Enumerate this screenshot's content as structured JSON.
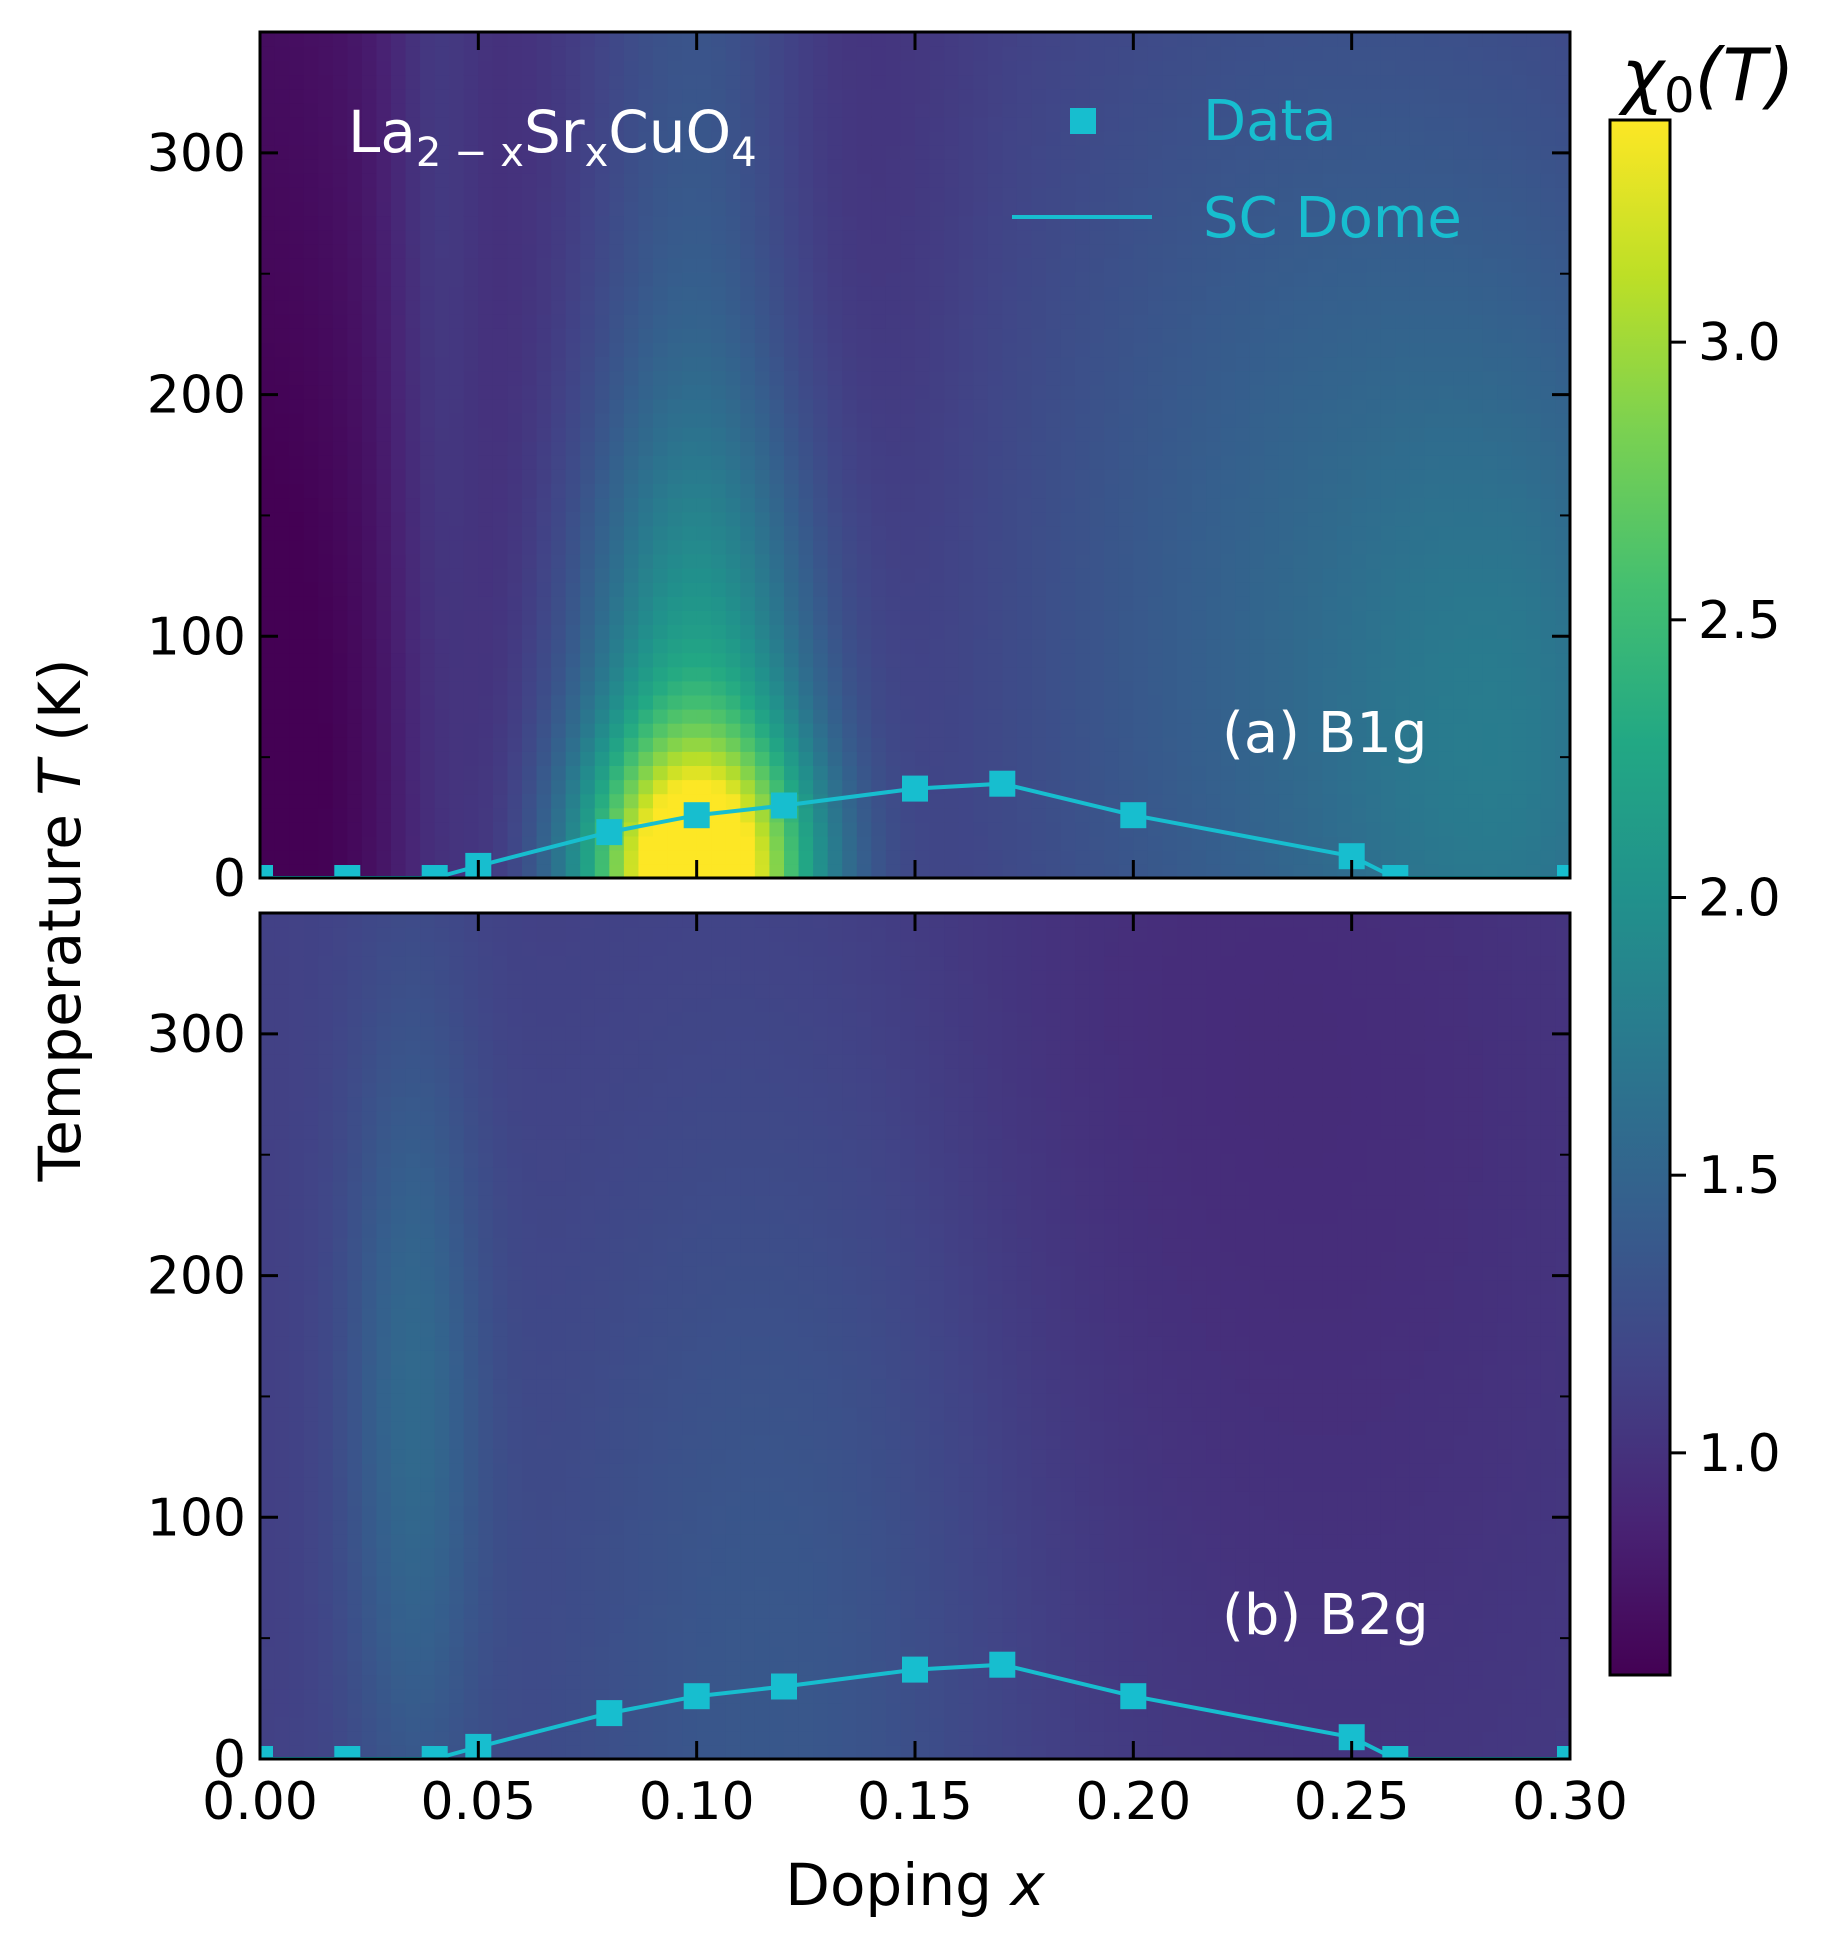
{
  "chart_data": {
    "type": "heatmap",
    "material": {
      "base": "La",
      "sub1": "2 − x",
      "mid": "Sr",
      "sub2": "x",
      "rest": "CuO",
      "sub3": "4"
    },
    "xlabel": "Doping x",
    "ylabel": "Temperature T (K)",
    "xlim": [
      0.0,
      0.3
    ],
    "ylim": [
      0,
      350
    ],
    "x_ticks": [
      "0.00",
      "0.05",
      "0.10",
      "0.15",
      "0.20",
      "0.25",
      "0.30"
    ],
    "y_ticks": [
      "0",
      "100",
      "200",
      "300"
    ],
    "colorbar": {
      "title": "χ0(T)",
      "colormap": "viridis",
      "range": [
        0.6,
        3.4
      ],
      "ticks": [
        "1.0",
        "1.5",
        "2.0",
        "2.5",
        "3.0"
      ]
    },
    "legend": {
      "position": "top-right",
      "color": "#17becf",
      "entries": [
        {
          "label": "Data",
          "marker": "square"
        },
        {
          "label": "SC Dome",
          "marker": "line"
        }
      ]
    },
    "sc_dome": {
      "x": [
        0.0,
        0.02,
        0.04,
        0.05,
        0.08,
        0.1,
        0.12,
        0.15,
        0.17,
        0.2,
        0.25,
        0.26,
        0.3
      ],
      "y": [
        0,
        0,
        0,
        5,
        19,
        26,
        30,
        37,
        39,
        26,
        9,
        0,
        0
      ]
    },
    "panels": [
      {
        "label": "(a) B1g",
        "background_value": 1.05,
        "features": [
          {
            "x": 0.0,
            "y": 250,
            "sx": 0.035,
            "sy": 400,
            "amp": -0.35
          },
          {
            "x": 0.0,
            "y": 0,
            "sx": 0.03,
            "sy": 150,
            "amp": -0.2
          },
          {
            "x": 0.04,
            "y": 250,
            "sx": 0.008,
            "sy": 300,
            "amp": 0.2
          },
          {
            "x": 0.1,
            "y": 0,
            "sx": 0.018,
            "sy": 40,
            "amp": 2.1
          },
          {
            "x": 0.1,
            "y": 60,
            "sx": 0.02,
            "sy": 90,
            "amp": 0.85
          },
          {
            "x": 0.1,
            "y": 250,
            "sx": 0.018,
            "sy": 300,
            "amp": 0.3
          },
          {
            "x": 0.25,
            "y": 100,
            "sx": 0.06,
            "sy": 220,
            "amp": 0.45
          },
          {
            "x": 0.29,
            "y": 40,
            "sx": 0.03,
            "sy": 120,
            "amp": 0.35
          },
          {
            "x": 0.135,
            "y": 260,
            "sx": 0.02,
            "sy": 200,
            "amp": -0.1
          }
        ]
      },
      {
        "label": "(b) B2g",
        "background_value": 1.18,
        "features": [
          {
            "x": 0.035,
            "y": 150,
            "sx": 0.011,
            "sy": 120,
            "amp": 0.4
          },
          {
            "x": 0.12,
            "y": 60,
            "sx": 0.035,
            "sy": 220,
            "amp": 0.22
          },
          {
            "x": 0.0,
            "y": 80,
            "sx": 0.02,
            "sy": 150,
            "amp": -0.05
          },
          {
            "x": 0.25,
            "y": 200,
            "sx": 0.07,
            "sy": 300,
            "amp": -0.18
          },
          {
            "x": 0.15,
            "y": 340,
            "sx": 0.1,
            "sy": 150,
            "amp": -0.1
          }
        ]
      }
    ]
  }
}
